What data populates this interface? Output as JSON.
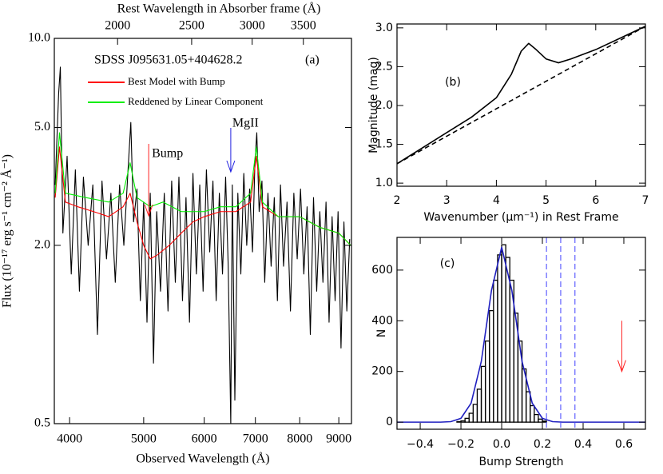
{
  "chart_data": [
    {
      "type": "line",
      "xlabel": "Observed Wavelength (Å)",
      "ylabel": "Flux (10⁻¹⁷ erg s⁻¹ cm⁻² Å⁻¹)",
      "x2label": "Rest Wavelength in Absorber frame (Å)",
      "xlog": true,
      "ylog": true,
      "xlim": [
        3820,
        9350
      ],
      "xticks": [
        4000,
        5000,
        6000,
        7000,
        8000,
        9000
      ],
      "x2lim": [
        1653,
        4046
      ],
      "x2ticks": [
        2000,
        2500,
        3000,
        3500
      ],
      "ylim": [
        0.5,
        10
      ],
      "yticks": [
        {
          "value": 0.5,
          "label": "0.5"
        },
        {
          "value": 2,
          "label": "2.0"
        },
        {
          "value": 5,
          "label": "5.0"
        },
        {
          "value": 10,
          "label": "10.0"
        }
      ],
      "annotations": [
        "SDSS J095631.05+404628.2",
        "(a)"
      ],
      "markers": [
        {
          "label": "Bump",
          "x": 5076,
          "color": "#ff2020"
        },
        {
          "label": "MgII",
          "x": 6500,
          "color": "#2020e0"
        }
      ],
      "series": [
        {
          "color": "#000000",
          "x": [
            3830,
            3870,
            3890,
            3920,
            3970,
            4020,
            4070,
            4120,
            4170,
            4230,
            4290,
            4350,
            4410,
            4470,
            4530,
            4590,
            4650,
            4710,
            4770,
            4810,
            4850,
            4900,
            4950,
            5000,
            5050,
            5100,
            5150,
            5200,
            5260,
            5320,
            5380,
            5440,
            5500,
            5560,
            5620,
            5680,
            5740,
            5800,
            5860,
            5920,
            5980,
            6040,
            6100,
            6160,
            6220,
            6280,
            6340,
            6400,
            6450,
            6500,
            6530,
            6580,
            6640,
            6700,
            6760,
            6820,
            6880,
            6940,
            6990,
            7030,
            7080,
            7140,
            7200,
            7270,
            7340,
            7410,
            7480,
            7550,
            7620,
            7700,
            7780,
            7860,
            7940,
            8020,
            8100,
            8180,
            8260,
            8340,
            8420,
            8500,
            8580,
            8660,
            8740,
            8820,
            8900,
            8980,
            9060,
            9140,
            9220,
            9300
          ],
          "values": [
            3.2,
            6.5,
            8.0,
            2.2,
            4.0,
            1.6,
            3.6,
            1.4,
            3.4,
            2.0,
            3.2,
            1.0,
            3.3,
            1.8,
            3.0,
            1.5,
            3.2,
            2.0,
            3.6,
            5.2,
            2.4,
            3.1,
            1.3,
            2.8,
            1.1,
            3.0,
            0.8,
            2.6,
            1.4,
            3.0,
            1.2,
            3.3,
            1.5,
            3.4,
            1.3,
            2.9,
            1.1,
            3.5,
            1.6,
            3.2,
            1.4,
            3.6,
            1.9,
            3.3,
            1.3,
            3.0,
            1.6,
            3.4,
            1.7,
            0.5,
            3.2,
            0.6,
            3.0,
            1.6,
            3.5,
            2.0,
            3.1,
            1.9,
            3.8,
            4.8,
            2.6,
            3.3,
            1.5,
            3.0,
            1.7,
            2.9,
            1.3,
            3.2,
            1.7,
            2.8,
            1.2,
            3.0,
            1.8,
            3.1,
            1.6,
            2.7,
            1.0,
            2.9,
            1.4,
            2.6,
            1.5,
            2.8,
            1.1,
            2.5,
            1.3,
            2.6,
            0.9,
            2.4,
            1.2,
            2.1
          ]
        },
        {
          "name": "Best Model with Bump",
          "color": "#ff0000",
          "x": [
            3830,
            3880,
            3950,
            4100,
            4300,
            4500,
            4700,
            4800,
            4900,
            5000,
            5100,
            5200,
            5400,
            5600,
            5800,
            6000,
            6300,
            6600,
            6900,
            7020,
            7150,
            7500,
            8000,
            8500,
            9000,
            9330
          ],
          "values": [
            2.9,
            4.3,
            2.8,
            2.7,
            2.6,
            2.5,
            2.7,
            3.0,
            2.4,
            2.0,
            1.8,
            1.85,
            2.0,
            2.2,
            2.4,
            2.5,
            2.6,
            2.6,
            2.8,
            4.0,
            2.7,
            2.5,
            2.5,
            2.3,
            2.2,
            2.0
          ]
        },
        {
          "name": "Reddened by Linear Component",
          "color": "#00ee00",
          "x": [
            3830,
            3880,
            3950,
            4200,
            4500,
            4700,
            4800,
            4900,
            5100,
            5300,
            5600,
            6000,
            6300,
            6600,
            6900,
            7020,
            7150,
            7500,
            8000,
            8500,
            9000,
            9330
          ],
          "values": [
            3.0,
            4.8,
            3.0,
            2.9,
            2.8,
            3.0,
            3.8,
            2.9,
            2.7,
            2.8,
            2.6,
            2.6,
            2.7,
            2.7,
            3.0,
            4.3,
            2.8,
            2.5,
            2.5,
            2.3,
            2.2,
            2.0
          ]
        }
      ]
    },
    {
      "type": "line",
      "xlabel": "Wavenumber (μm⁻¹) in Rest Frame",
      "ylabel": "Magnitude (mag)",
      "xlim": [
        2,
        7
      ],
      "xticks": [
        2,
        3,
        4,
        5,
        6,
        7
      ],
      "ylim": [
        0.96,
        3.05
      ],
      "yticks": [
        {
          "value": 1,
          "label": "1.0"
        },
        {
          "value": 1.5,
          "label": "1.5"
        },
        {
          "value": 2,
          "label": "2.0"
        },
        {
          "value": 2.5,
          "label": "2.5"
        },
        {
          "value": 3,
          "label": "3.0"
        }
      ],
      "annotations": [
        "(b)"
      ],
      "series": [
        {
          "color": "#000000",
          "x": [
            2,
            2.5,
            3,
            3.5,
            4,
            4.3,
            4.5,
            4.65,
            4.8,
            5.0,
            5.25,
            5.5,
            6,
            6.5,
            7
          ],
          "values": [
            1.25,
            1.45,
            1.65,
            1.85,
            2.1,
            2.4,
            2.7,
            2.8,
            2.72,
            2.6,
            2.55,
            2.6,
            2.72,
            2.87,
            3.02
          ]
        },
        {
          "color": "#000000",
          "dash": true,
          "x": [
            2,
            7
          ],
          "values": [
            1.25,
            3.02
          ]
        }
      ]
    },
    {
      "type": "histogram",
      "xlabel": "Bump Strength",
      "ylabel": "N",
      "xlim": [
        -0.514,
        0.706
      ],
      "xticks": [
        {
          "value": -0.4,
          "label": "−0.4"
        },
        {
          "value": -0.2,
          "label": "−0.2"
        },
        {
          "value": 0,
          "label": "0.0"
        },
        {
          "value": 0.2,
          "label": "0.2"
        },
        {
          "value": 0.4,
          "label": "0.4"
        },
        {
          "value": 0.6,
          "label": "0.6"
        }
      ],
      "ylim": [
        -28,
        729
      ],
      "yticks": [
        0,
        200,
        400,
        600
      ],
      "annotations": [
        "(c)"
      ],
      "bins": [
        -0.22,
        -0.2,
        -0.18,
        -0.16,
        -0.14,
        -0.12,
        -0.1,
        -0.08,
        -0.06,
        -0.04,
        -0.02,
        0,
        0.02,
        0.04,
        0.06,
        0.08,
        0.1,
        0.12,
        0.14,
        0.16,
        0.18,
        0.2,
        0.22
      ],
      "counts": [
        2,
        5,
        15,
        35,
        70,
        130,
        220,
        320,
        440,
        560,
        660,
        700,
        650,
        560,
        430,
        320,
        210,
        120,
        65,
        30,
        12,
        4
      ],
      "color": "#000000",
      "series": [
        {
          "color": "#2020c0",
          "x": [
            -0.514,
            -0.3,
            -0.25,
            -0.2,
            -0.15,
            -0.1,
            -0.05,
            0,
            0.05,
            0.1,
            0.15,
            0.2,
            0.25,
            0.3,
            0.706
          ],
          "values": [
            0,
            0,
            2,
            15,
            75,
            240,
            520,
            690,
            520,
            240,
            75,
            15,
            2,
            0,
            0
          ]
        }
      ],
      "vlines": [
        0.22,
        0.29,
        0.36
      ],
      "vline_color": "#4040ff",
      "markers": [
        {
          "x": 0.59,
          "color": "#ff2020"
        }
      ]
    }
  ]
}
